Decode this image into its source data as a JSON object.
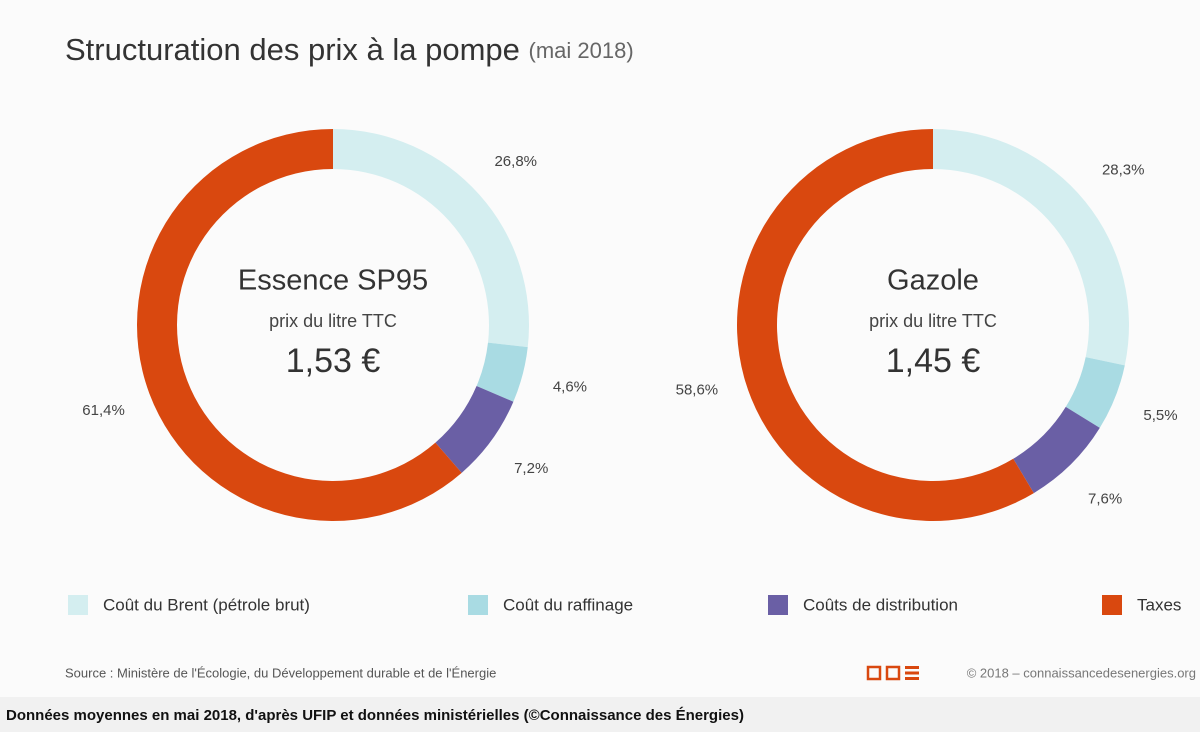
{
  "title": "Structuration des prix à la pompe",
  "subtitle": "(mai 2018)",
  "source": "Source : Ministère de l'Écologie, du Développement durable et de l'Énergie",
  "copyright": "© 2018 – connaissancedesenergies.org",
  "caption": "Données moyennes en mai 2018, d'après UFIP et données ministérielles (©Connaissance des Énergies)",
  "chart_data": [
    {
      "type": "donut",
      "title": "Essence SP95",
      "subtitle": "prix du litre TTC",
      "annotation": "1,53 €",
      "categories": [
        "Coût du Brent (pétrole brut)",
        "Coût du raffinage",
        "Coûts de distribution",
        "Taxes"
      ],
      "values": [
        26.8,
        4.6,
        7.2,
        61.4
      ],
      "value_labels": [
        "26,8%",
        "4,6%",
        "7,2%",
        "61,4%"
      ],
      "colors": [
        "#d4eef0",
        "#a9dbe3",
        "#6a5fa5",
        "#d9480f"
      ]
    },
    {
      "type": "donut",
      "title": "Gazole",
      "subtitle": "prix du litre TTC",
      "annotation": "1,45 €",
      "categories": [
        "Coût du Brent (pétrole brut)",
        "Coût du raffinage",
        "Coûts de distribution",
        "Taxes"
      ],
      "values": [
        28.3,
        5.5,
        7.6,
        58.6
      ],
      "value_labels": [
        "28,3%",
        "5,5%",
        "7,6%",
        "58,6%"
      ],
      "colors": [
        "#d4eef0",
        "#a9dbe3",
        "#6a5fa5",
        "#d9480f"
      ]
    }
  ]
}
